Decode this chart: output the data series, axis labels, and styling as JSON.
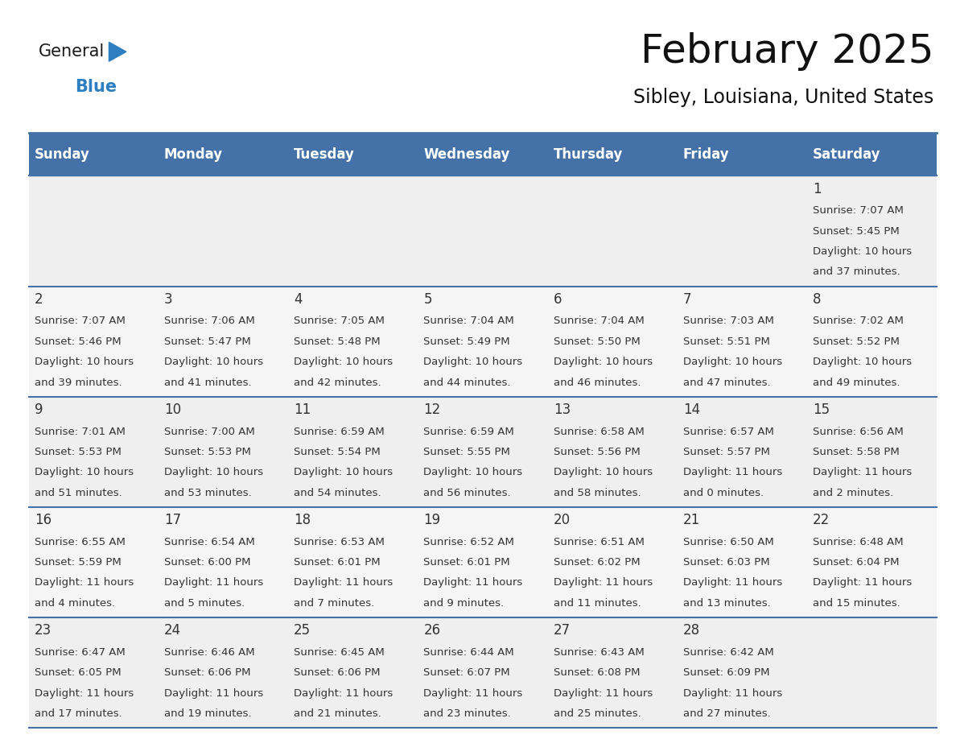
{
  "title": "February 2025",
  "subtitle": "Sibley, Louisiana, United States",
  "header_color": "#4472A8",
  "header_text_color": "#FFFFFF",
  "day_names": [
    "Sunday",
    "Monday",
    "Tuesday",
    "Wednesday",
    "Thursday",
    "Friday",
    "Saturday"
  ],
  "bg_color": "#FFFFFF",
  "cell_bg_row0": "#EFEFEF",
  "cell_bg_row1": "#F5F5F5",
  "cell_bg_row2": "#EFEFEF",
  "cell_bg_row3": "#F5F5F5",
  "cell_bg_row4": "#EFEFEF",
  "border_color": "#4472A8",
  "text_color": "#333333",
  "days": [
    {
      "day": 1,
      "col": 6,
      "row": 0,
      "sunrise": "7:07 AM",
      "sunset": "5:45 PM",
      "daylight_line1": "Daylight: 10 hours",
      "daylight_line2": "and 37 minutes."
    },
    {
      "day": 2,
      "col": 0,
      "row": 1,
      "sunrise": "7:07 AM",
      "sunset": "5:46 PM",
      "daylight_line1": "Daylight: 10 hours",
      "daylight_line2": "and 39 minutes."
    },
    {
      "day": 3,
      "col": 1,
      "row": 1,
      "sunrise": "7:06 AM",
      "sunset": "5:47 PM",
      "daylight_line1": "Daylight: 10 hours",
      "daylight_line2": "and 41 minutes."
    },
    {
      "day": 4,
      "col": 2,
      "row": 1,
      "sunrise": "7:05 AM",
      "sunset": "5:48 PM",
      "daylight_line1": "Daylight: 10 hours",
      "daylight_line2": "and 42 minutes."
    },
    {
      "day": 5,
      "col": 3,
      "row": 1,
      "sunrise": "7:04 AM",
      "sunset": "5:49 PM",
      "daylight_line1": "Daylight: 10 hours",
      "daylight_line2": "and 44 minutes."
    },
    {
      "day": 6,
      "col": 4,
      "row": 1,
      "sunrise": "7:04 AM",
      "sunset": "5:50 PM",
      "daylight_line1": "Daylight: 10 hours",
      "daylight_line2": "and 46 minutes."
    },
    {
      "day": 7,
      "col": 5,
      "row": 1,
      "sunrise": "7:03 AM",
      "sunset": "5:51 PM",
      "daylight_line1": "Daylight: 10 hours",
      "daylight_line2": "and 47 minutes."
    },
    {
      "day": 8,
      "col": 6,
      "row": 1,
      "sunrise": "7:02 AM",
      "sunset": "5:52 PM",
      "daylight_line1": "Daylight: 10 hours",
      "daylight_line2": "and 49 minutes."
    },
    {
      "day": 9,
      "col": 0,
      "row": 2,
      "sunrise": "7:01 AM",
      "sunset": "5:53 PM",
      "daylight_line1": "Daylight: 10 hours",
      "daylight_line2": "and 51 minutes."
    },
    {
      "day": 10,
      "col": 1,
      "row": 2,
      "sunrise": "7:00 AM",
      "sunset": "5:53 PM",
      "daylight_line1": "Daylight: 10 hours",
      "daylight_line2": "and 53 minutes."
    },
    {
      "day": 11,
      "col": 2,
      "row": 2,
      "sunrise": "6:59 AM",
      "sunset": "5:54 PM",
      "daylight_line1": "Daylight: 10 hours",
      "daylight_line2": "and 54 minutes."
    },
    {
      "day": 12,
      "col": 3,
      "row": 2,
      "sunrise": "6:59 AM",
      "sunset": "5:55 PM",
      "daylight_line1": "Daylight: 10 hours",
      "daylight_line2": "and 56 minutes."
    },
    {
      "day": 13,
      "col": 4,
      "row": 2,
      "sunrise": "6:58 AM",
      "sunset": "5:56 PM",
      "daylight_line1": "Daylight: 10 hours",
      "daylight_line2": "and 58 minutes."
    },
    {
      "day": 14,
      "col": 5,
      "row": 2,
      "sunrise": "6:57 AM",
      "sunset": "5:57 PM",
      "daylight_line1": "Daylight: 11 hours",
      "daylight_line2": "and 0 minutes."
    },
    {
      "day": 15,
      "col": 6,
      "row": 2,
      "sunrise": "6:56 AM",
      "sunset": "5:58 PM",
      "daylight_line1": "Daylight: 11 hours",
      "daylight_line2": "and 2 minutes."
    },
    {
      "day": 16,
      "col": 0,
      "row": 3,
      "sunrise": "6:55 AM",
      "sunset": "5:59 PM",
      "daylight_line1": "Daylight: 11 hours",
      "daylight_line2": "and 4 minutes."
    },
    {
      "day": 17,
      "col": 1,
      "row": 3,
      "sunrise": "6:54 AM",
      "sunset": "6:00 PM",
      "daylight_line1": "Daylight: 11 hours",
      "daylight_line2": "and 5 minutes."
    },
    {
      "day": 18,
      "col": 2,
      "row": 3,
      "sunrise": "6:53 AM",
      "sunset": "6:01 PM",
      "daylight_line1": "Daylight: 11 hours",
      "daylight_line2": "and 7 minutes."
    },
    {
      "day": 19,
      "col": 3,
      "row": 3,
      "sunrise": "6:52 AM",
      "sunset": "6:01 PM",
      "daylight_line1": "Daylight: 11 hours",
      "daylight_line2": "and 9 minutes."
    },
    {
      "day": 20,
      "col": 4,
      "row": 3,
      "sunrise": "6:51 AM",
      "sunset": "6:02 PM",
      "daylight_line1": "Daylight: 11 hours",
      "daylight_line2": "and 11 minutes."
    },
    {
      "day": 21,
      "col": 5,
      "row": 3,
      "sunrise": "6:50 AM",
      "sunset": "6:03 PM",
      "daylight_line1": "Daylight: 11 hours",
      "daylight_line2": "and 13 minutes."
    },
    {
      "day": 22,
      "col": 6,
      "row": 3,
      "sunrise": "6:48 AM",
      "sunset": "6:04 PM",
      "daylight_line1": "Daylight: 11 hours",
      "daylight_line2": "and 15 minutes."
    },
    {
      "day": 23,
      "col": 0,
      "row": 4,
      "sunrise": "6:47 AM",
      "sunset": "6:05 PM",
      "daylight_line1": "Daylight: 11 hours",
      "daylight_line2": "and 17 minutes."
    },
    {
      "day": 24,
      "col": 1,
      "row": 4,
      "sunrise": "6:46 AM",
      "sunset": "6:06 PM",
      "daylight_line1": "Daylight: 11 hours",
      "daylight_line2": "and 19 minutes."
    },
    {
      "day": 25,
      "col": 2,
      "row": 4,
      "sunrise": "6:45 AM",
      "sunset": "6:06 PM",
      "daylight_line1": "Daylight: 11 hours",
      "daylight_line2": "and 21 minutes."
    },
    {
      "day": 26,
      "col": 3,
      "row": 4,
      "sunrise": "6:44 AM",
      "sunset": "6:07 PM",
      "daylight_line1": "Daylight: 11 hours",
      "daylight_line2": "and 23 minutes."
    },
    {
      "day": 27,
      "col": 4,
      "row": 4,
      "sunrise": "6:43 AM",
      "sunset": "6:08 PM",
      "daylight_line1": "Daylight: 11 hours",
      "daylight_line2": "and 25 minutes."
    },
    {
      "day": 28,
      "col": 5,
      "row": 4,
      "sunrise": "6:42 AM",
      "sunset": "6:09 PM",
      "daylight_line1": "Daylight: 11 hours",
      "daylight_line2": "and 27 minutes."
    }
  ],
  "num_rows": 5,
  "logo_color_general": "#1A1A1A",
  "logo_color_blue": "#2E7EC2",
  "logo_triangle_color": "#2E7EC2",
  "title_fontsize": 36,
  "subtitle_fontsize": 17,
  "header_fontsize": 12,
  "day_num_fontsize": 12,
  "cell_text_fontsize": 9.5
}
